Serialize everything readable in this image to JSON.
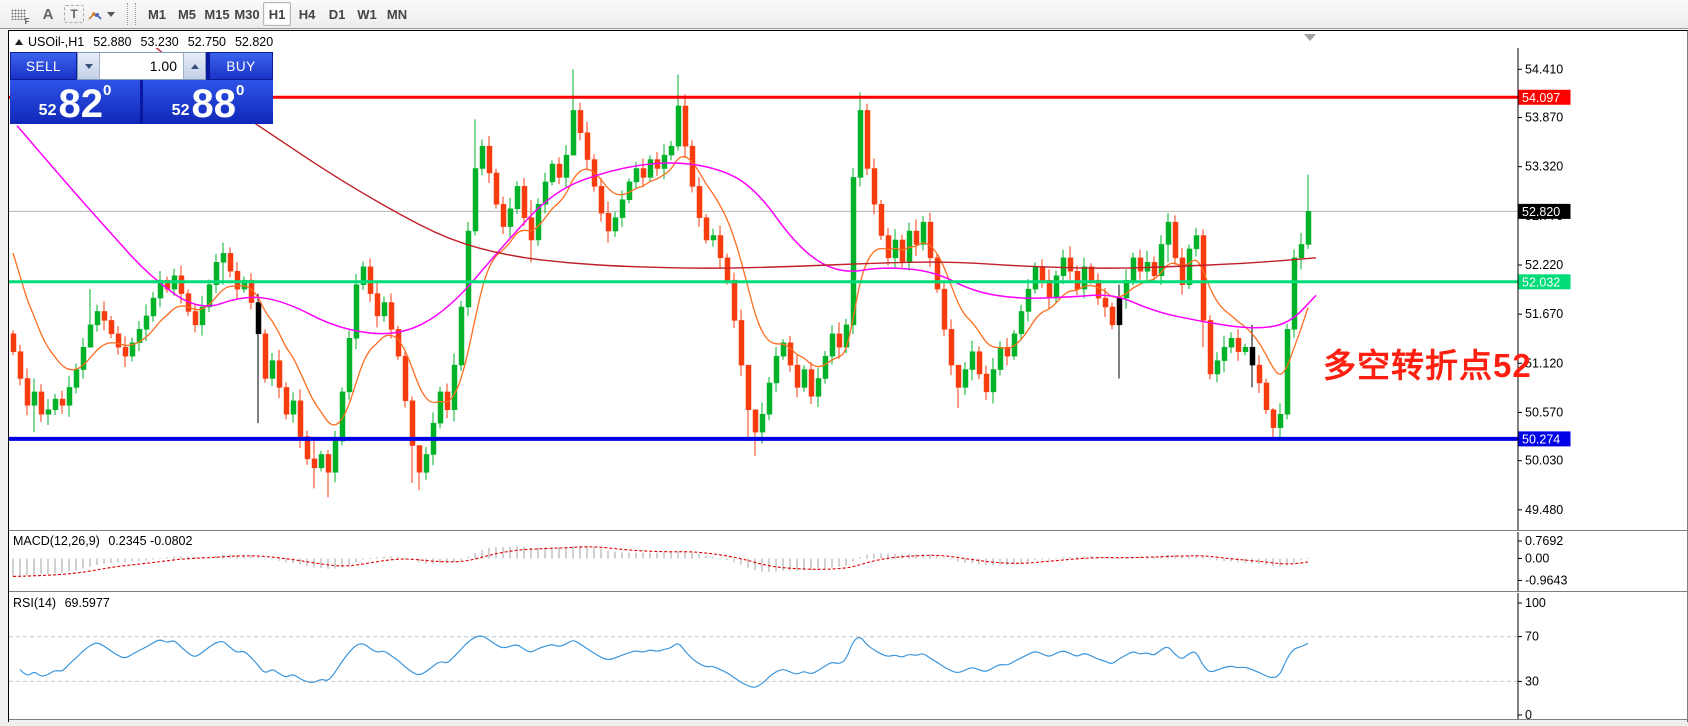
{
  "toolbar": {
    "tools": [
      {
        "name": "templates-grid-icon",
        "label": "F"
      },
      {
        "name": "font-a-icon",
        "label": "A"
      },
      {
        "name": "text-box-icon",
        "label": "T"
      },
      {
        "name": "objects-arrows-icon",
        "label": ""
      }
    ],
    "timeframes": [
      {
        "label": "M1",
        "active": false
      },
      {
        "label": "M5",
        "active": false
      },
      {
        "label": "M15",
        "active": false
      },
      {
        "label": "M30",
        "active": false
      },
      {
        "label": "H1",
        "active": true
      },
      {
        "label": "H4",
        "active": false
      },
      {
        "label": "D1",
        "active": false
      },
      {
        "label": "W1",
        "active": false
      },
      {
        "label": "MN",
        "active": false
      }
    ]
  },
  "title": {
    "symbol": "USOil-,H1",
    "open": "52.880",
    "high": "53.230",
    "low": "52.750",
    "close": "52.820"
  },
  "trade_panel": {
    "sell_label": "SELL",
    "buy_label": "BUY",
    "volume": "1.00",
    "sell_price": {
      "prefix": "52",
      "big": "82",
      "sup": "0"
    },
    "buy_price": {
      "prefix": "52",
      "big": "88",
      "sup": "0"
    }
  },
  "annotation": {
    "text": "多空转折点52",
    "color": "#ff1e0f"
  },
  "axis": {
    "main_ticks": [
      "54.410",
      "53.870",
      "53.320",
      "52.770",
      "52.220",
      "51.670",
      "51.120",
      "50.570",
      "50.030",
      "49.480"
    ],
    "macd_ticks": [
      {
        "label": "0.7692",
        "value": 0.7692
      },
      {
        "label": "0.00",
        "value": 0.0
      },
      {
        "label": "-0.9643",
        "value": -0.9643
      }
    ],
    "rsi_ticks": [
      {
        "label": "100",
        "value": 100
      },
      {
        "label": "70",
        "value": 70
      },
      {
        "label": "30",
        "value": 30
      },
      {
        "label": "0",
        "value": 0
      }
    ]
  },
  "hlines": [
    {
      "name": "resistance-line",
      "label": "54.097",
      "value": 54.097,
      "color": "#ff0000",
      "width": 3
    },
    {
      "name": "pivot-line",
      "label": "52.032",
      "value": 52.032,
      "color": "#00dc78",
      "width": 3
    },
    {
      "name": "support-line",
      "label": "50.274",
      "value": 50.274,
      "color": "#0000e6",
      "width": 4
    }
  ],
  "current_price": {
    "label": "52.820",
    "value": 52.82,
    "line_color": "#b4b4b4",
    "badge_color": "#000000"
  },
  "panes": {
    "macd": {
      "label": "MACD(12,26,9)",
      "values": "0.2345 -0.0802"
    },
    "rsi": {
      "label": "RSI(14)",
      "value": "69.5977"
    }
  },
  "colors": {
    "up": "#00b228",
    "down": "#f83c0f",
    "black_candle": "#000000",
    "ma_fast_orange": "#ff6d1f",
    "ma_mid_magenta": "#ff00ff",
    "ma_slow_darkred": "#c01e28",
    "macd_hist": "#c2c2c2",
    "macd_signal": "#e00000",
    "rsi_line": "#3c96dc",
    "grid_dash": "#c8c8c8"
  },
  "chart_data": {
    "type": "candlestick-ohlc",
    "symbol": "USOil",
    "timeframe": "H1",
    "price_axis_range": [
      49.48,
      54.41
    ],
    "candles": {
      "first_open": 51.45,
      "closes": [
        51.25,
        50.95,
        50.65,
        50.8,
        50.55,
        50.6,
        50.72,
        50.65,
        50.85,
        51.05,
        51.3,
        51.55,
        51.7,
        51.6,
        51.45,
        51.3,
        51.2,
        51.35,
        51.5,
        51.65,
        51.85,
        52.05,
        51.95,
        52.1,
        51.9,
        51.7,
        51.55,
        51.75,
        52.0,
        52.25,
        52.35,
        52.15,
        51.95,
        52.05,
        51.8,
        51.45,
        50.95,
        51.15,
        50.85,
        50.55,
        50.7,
        50.3,
        50.05,
        49.95,
        50.1,
        49.9,
        50.25,
        50.8,
        51.4,
        52.0,
        52.2,
        51.9,
        51.65,
        51.8,
        51.5,
        51.2,
        50.7,
        50.2,
        49.9,
        50.1,
        50.45,
        50.8,
        50.6,
        51.1,
        51.75,
        52.6,
        53.3,
        53.55,
        53.25,
        52.9,
        52.65,
        52.85,
        53.1,
        52.75,
        52.5,
        52.9,
        53.15,
        53.35,
        53.2,
        53.45,
        53.95,
        53.7,
        53.4,
        53.1,
        52.8,
        52.6,
        52.75,
        52.95,
        53.15,
        53.3,
        53.2,
        53.4,
        53.3,
        53.45,
        53.55,
        54.0,
        53.55,
        53.1,
        52.75,
        52.5,
        52.55,
        52.3,
        52.05,
        51.6,
        51.1,
        50.6,
        50.35,
        50.55,
        50.9,
        51.2,
        51.35,
        51.1,
        50.85,
        51.05,
        50.75,
        50.95,
        51.2,
        51.45,
        51.3,
        51.55,
        53.2,
        53.95,
        53.3,
        52.9,
        52.55,
        52.3,
        52.5,
        52.25,
        52.6,
        52.45,
        52.7,
        52.3,
        51.95,
        51.5,
        51.1,
        50.85,
        51.05,
        51.25,
        51.0,
        50.8,
        51.05,
        51.3,
        51.2,
        51.45,
        51.7,
        51.95,
        52.2,
        52.05,
        51.85,
        52.1,
        52.3,
        52.15,
        51.95,
        52.2,
        52.05,
        51.85,
        51.75,
        51.55,
        51.85,
        52.05,
        52.3,
        52.15,
        52.25,
        52.1,
        52.45,
        52.7,
        52.3,
        52.0,
        52.4,
        52.55,
        51.6,
        51.0,
        51.15,
        51.3,
        51.4,
        51.25,
        51.3,
        51.1,
        50.9,
        50.6,
        50.4,
        50.55,
        51.5,
        52.3,
        52.45,
        52.82
      ],
      "wicks": {
        "3": [
          50.95,
          50.35
        ],
        "11": [
          51.95,
          51.45
        ],
        "30": [
          52.47,
          52.0
        ],
        "35": [
          51.9,
          50.45
        ],
        "43": [
          50.3,
          49.72
        ],
        "45": [
          50.15,
          49.62
        ],
        "57": [
          50.75,
          49.78
        ],
        "58": [
          50.2,
          49.7
        ],
        "66": [
          53.85,
          52.55
        ],
        "74": [
          52.95,
          52.25
        ],
        "80": [
          54.41,
          53.6
        ],
        "95": [
          54.35,
          53.5
        ],
        "105": [
          51.1,
          50.25
        ],
        "106": [
          50.6,
          50.08
        ],
        "121": [
          54.15,
          53.1
        ],
        "135": [
          51.1,
          50.62
        ],
        "158": [
          52.0,
          50.95
        ],
        "165": [
          52.8,
          52.25
        ],
        "170": [
          52.62,
          51.3
        ],
        "177": [
          51.55,
          50.85
        ],
        "180": [
          50.62,
          50.28
        ],
        "185": [
          53.23,
          52.4
        ]
      },
      "black": [
        35,
        158,
        177
      ]
    },
    "ma_anchors": {
      "magenta": [
        [
          8,
          53.78
        ],
        [
          60,
          53.1
        ],
        [
          100,
          52.6
        ],
        [
          140,
          52.1
        ],
        [
          190,
          51.7
        ],
        [
          235,
          51.88
        ],
        [
          275,
          51.82
        ],
        [
          330,
          51.5
        ],
        [
          390,
          51.42
        ],
        [
          440,
          51.72
        ],
        [
          495,
          52.45
        ],
        [
          545,
          53.05
        ],
        [
          600,
          53.28
        ],
        [
          655,
          53.38
        ],
        [
          705,
          53.32
        ],
        [
          745,
          53.1
        ],
        [
          790,
          52.4
        ],
        [
          830,
          52.12
        ],
        [
          875,
          52.2
        ],
        [
          925,
          52.15
        ],
        [
          965,
          51.92
        ],
        [
          1010,
          51.84
        ],
        [
          1060,
          51.86
        ],
        [
          1105,
          51.9
        ],
        [
          1145,
          51.7
        ],
        [
          1195,
          51.58
        ],
        [
          1245,
          51.5
        ],
        [
          1280,
          51.56
        ],
        [
          1307,
          51.88
        ]
      ],
      "darkred": [
        [
          140,
          54.72
        ],
        [
          200,
          54.15
        ],
        [
          260,
          53.7
        ],
        [
          320,
          53.25
        ],
        [
          380,
          52.85
        ],
        [
          440,
          52.5
        ],
        [
          500,
          52.32
        ],
        [
          560,
          52.24
        ],
        [
          620,
          52.2
        ],
        [
          700,
          52.18
        ],
        [
          780,
          52.2
        ],
        [
          860,
          52.24
        ],
        [
          940,
          52.26
        ],
        [
          1020,
          52.2
        ],
        [
          1100,
          52.18
        ],
        [
          1160,
          52.2
        ],
        [
          1240,
          52.24
        ],
        [
          1307,
          52.3
        ]
      ]
    }
  }
}
